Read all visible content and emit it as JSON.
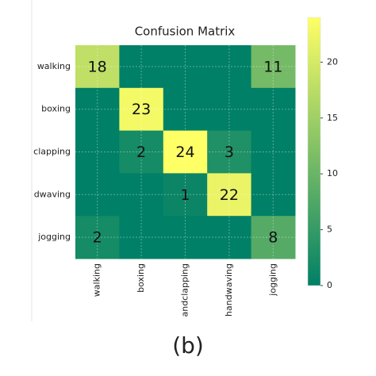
{
  "chart_data": {
    "type": "heatmap",
    "title": "Confusion Matrix",
    "caption": "(b)",
    "x_categories": [
      "walking",
      "boxing",
      "andclapping",
      "handwaving",
      "jogging"
    ],
    "y_categories": [
      "walking",
      "boxing",
      "clapping",
      "dwaving",
      "jogging"
    ],
    "values": [
      [
        18,
        0,
        0,
        0,
        11
      ],
      [
        0,
        23,
        0,
        0,
        0
      ],
      [
        0,
        2,
        24,
        3,
        0
      ],
      [
        0,
        0,
        1,
        22,
        0
      ],
      [
        2,
        0,
        0,
        0,
        8
      ]
    ],
    "colormap": [
      "#008066",
      "#ffff66"
    ],
    "clim": [
      0,
      24
    ],
    "cticks": [
      0,
      5,
      10,
      15,
      20
    ],
    "grid": true
  }
}
